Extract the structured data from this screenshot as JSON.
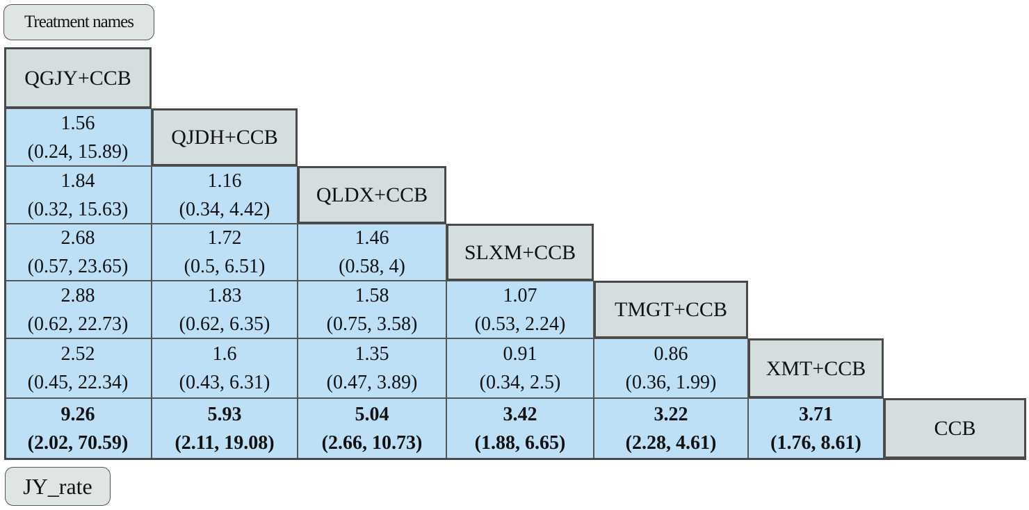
{
  "labels": {
    "top": "Treatment names",
    "bottom": "JY_rate"
  },
  "treatments": [
    "QGJY+CCB",
    "QJDH+CCB",
    "QLDX+CCB",
    "SLXM+CCB",
    "TMGT+CCB",
    "XMT+CCB",
    "CCB"
  ],
  "comparisons": [
    [],
    [
      {
        "est": "1.56",
        "ci": "(0.24, 15.89)"
      }
    ],
    [
      {
        "est": "1.84",
        "ci": "(0.32, 15.63)"
      },
      {
        "est": "1.16",
        "ci": "(0.34, 4.42)"
      }
    ],
    [
      {
        "est": "2.68",
        "ci": "(0.57, 23.65)"
      },
      {
        "est": "1.72",
        "ci": "(0.5, 6.51)"
      },
      {
        "est": "1.46",
        "ci": "(0.58, 4)"
      }
    ],
    [
      {
        "est": "2.88",
        "ci": "(0.62, 22.73)"
      },
      {
        "est": "1.83",
        "ci": "(0.62, 6.35)"
      },
      {
        "est": "1.58",
        "ci": "(0.75, 3.58)"
      },
      {
        "est": "1.07",
        "ci": "(0.53, 2.24)"
      }
    ],
    [
      {
        "est": "2.52",
        "ci": "(0.45, 22.34)"
      },
      {
        "est": "1.6",
        "ci": "(0.43, 6.31)"
      },
      {
        "est": "1.35",
        "ci": "(0.47, 3.89)"
      },
      {
        "est": "0.91",
        "ci": "(0.34, 2.5)"
      },
      {
        "est": "0.86",
        "ci": "(0.36, 1.99)"
      }
    ],
    [
      {
        "est": "9.26",
        "ci": "(2.02, 70.59)",
        "bold": true
      },
      {
        "est": "5.93",
        "ci": "(2.11, 19.08)",
        "bold": true
      },
      {
        "est": "5.04",
        "ci": "(2.66, 10.73)",
        "bold": true
      },
      {
        "est": "3.42",
        "ci": "(1.88, 6.65)",
        "bold": true
      },
      {
        "est": "3.22",
        "ci": "(2.28, 4.61)",
        "bold": true
      },
      {
        "est": "3.71",
        "ci": "(1.76, 8.61)",
        "bold": true
      }
    ]
  ],
  "colors": {
    "diagonal_fill": "#d5dede",
    "value_fill": "#bde0f7",
    "label_fill": "#dfe5e5"
  }
}
